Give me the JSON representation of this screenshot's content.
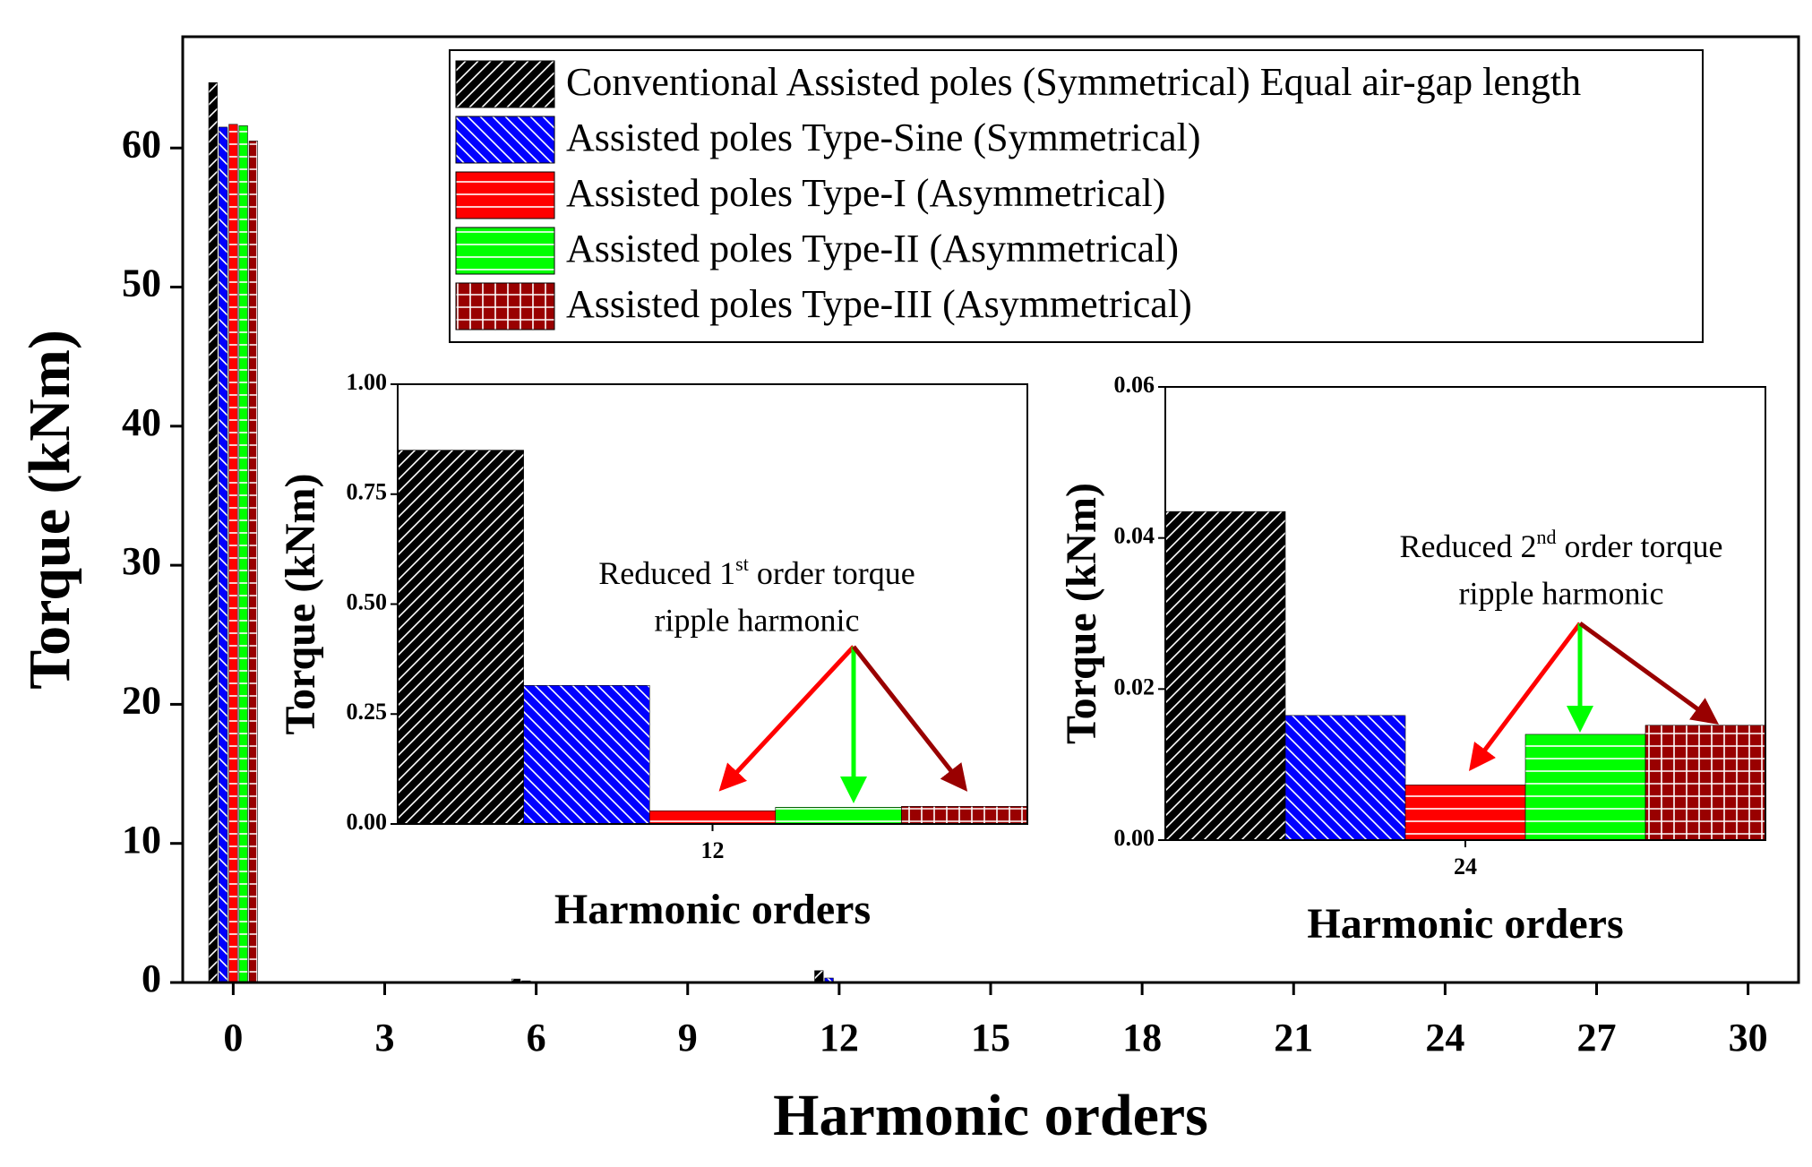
{
  "chart_data": [
    {
      "type": "bar",
      "xlabel": "Harmonic orders",
      "ylabel": "Torque (kNm)",
      "x": [
        0,
        6,
        12,
        24
      ],
      "series": [
        {
          "name": "Conventional Assisted poles (Symmetrical) Equal air-gap length",
          "color": "#000000",
          "pattern": "diag-right",
          "values": [
            64.7,
            0.25,
            0.85,
            0.043
          ]
        },
        {
          "name": "Assisted poles Type-Sine (Symmetrical)",
          "color": "#0000ff",
          "pattern": "diag-left",
          "values": [
            61.5,
            0.12,
            0.32,
            0.016
          ]
        },
        {
          "name": "Assisted poles Type-I  (Asymmetrical)",
          "color": "#ff0000",
          "pattern": "horizontal",
          "values": [
            61.7,
            0.05,
            0.03,
            0.007
          ]
        },
        {
          "name": "Assisted poles Type-II (Asymmetrical)",
          "color": "#00ff00",
          "pattern": "horizontal",
          "values": [
            61.6,
            0.06,
            0.04,
            0.014
          ]
        },
        {
          "name": "Assisted poles Type-III (Asymmetrical)",
          "color": "#990000",
          "pattern": "grid",
          "values": [
            60.5,
            0.05,
            0.04,
            0.015
          ]
        }
      ],
      "xlim": [
        -1,
        31
      ],
      "xticks": [
        0,
        3,
        6,
        9,
        12,
        15,
        18,
        21,
        24,
        27,
        30
      ],
      "ylim": [
        0,
        68
      ],
      "yticks": [
        0,
        10,
        20,
        30,
        40,
        50,
        60
      ],
      "legend": "top right"
    },
    {
      "type": "bar",
      "xlabel": "Harmonic orders",
      "ylabel": "Torque (kNm)",
      "categories": [
        "12"
      ],
      "series": [
        {
          "values": [
            0.85
          ]
        },
        {
          "values": [
            0.315
          ]
        },
        {
          "values": [
            0.03
          ]
        },
        {
          "values": [
            0.038
          ]
        },
        {
          "values": [
            0.04
          ]
        }
      ],
      "ylim": [
        0,
        1
      ],
      "yticks": [
        {
          "value": 0,
          "label": "0.00"
        },
        0.25,
        {
          "value": 0.5,
          "label": "0.50"
        },
        0.75,
        {
          "value": 1,
          "label": "1.00"
        }
      ],
      "annotation": {
        "text": "Reduced 1",
        "sup": "st",
        "rest": " order torque",
        "line2": "ripple harmonic"
      }
    },
    {
      "type": "bar",
      "xlabel": "Harmonic orders",
      "ylabel": "Torque (kNm)",
      "categories": [
        "24"
      ],
      "series": [
        {
          "values": [
            0.0435
          ]
        },
        {
          "values": [
            0.0165
          ]
        },
        {
          "values": [
            0.0073
          ]
        },
        {
          "values": [
            0.014
          ]
        },
        {
          "values": [
            0.0152
          ]
        }
      ],
      "ylim": [
        0,
        0.06
      ],
      "yticks": [
        {
          "value": 0,
          "label": "0.00"
        },
        0.02,
        0.04,
        0.06
      ],
      "annotation": {
        "text": "Reduced 2",
        "sup": "nd",
        "rest": " order torque",
        "line2": "ripple harmonic"
      }
    }
  ]
}
